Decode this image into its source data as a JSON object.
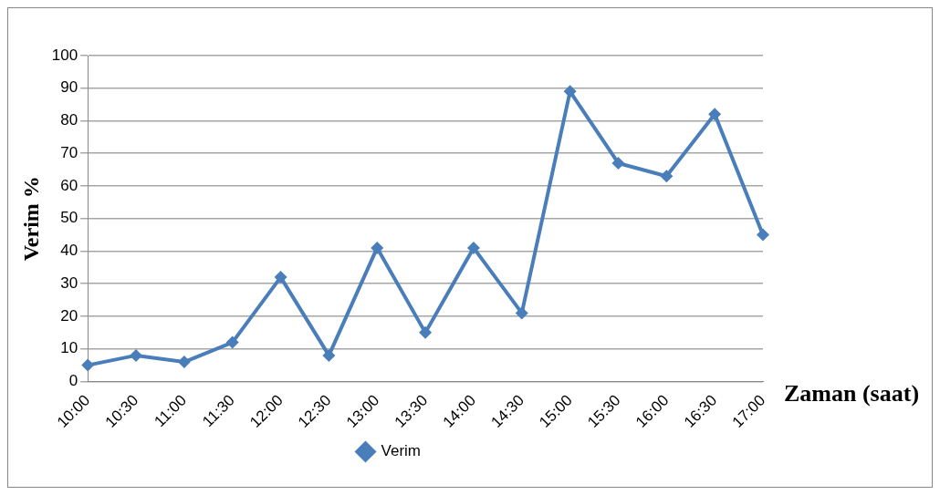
{
  "chart_data": {
    "type": "line",
    "xlabel": "Zaman (saat)",
    "ylabel": "Verim %",
    "categories": [
      "10:00",
      "10:30",
      "11:00",
      "11:30",
      "12:00",
      "12:30",
      "13:00",
      "13:30",
      "14:00",
      "14:30",
      "15:00",
      "15:30",
      "16:00",
      "16:30",
      "17:00"
    ],
    "series": [
      {
        "name": "Verim",
        "color": "#4a7ebb",
        "values": [
          5,
          8,
          6,
          12,
          32,
          8,
          41,
          15,
          41,
          21,
          89,
          67,
          63,
          82,
          45
        ]
      }
    ],
    "ylim": [
      0,
      100
    ],
    "yticks": [
      0,
      10,
      20,
      30,
      40,
      50,
      60,
      70,
      80,
      90,
      100
    ],
    "grid": "y",
    "legend": "bottom",
    "marker": "diamond",
    "line_style": "solid"
  }
}
